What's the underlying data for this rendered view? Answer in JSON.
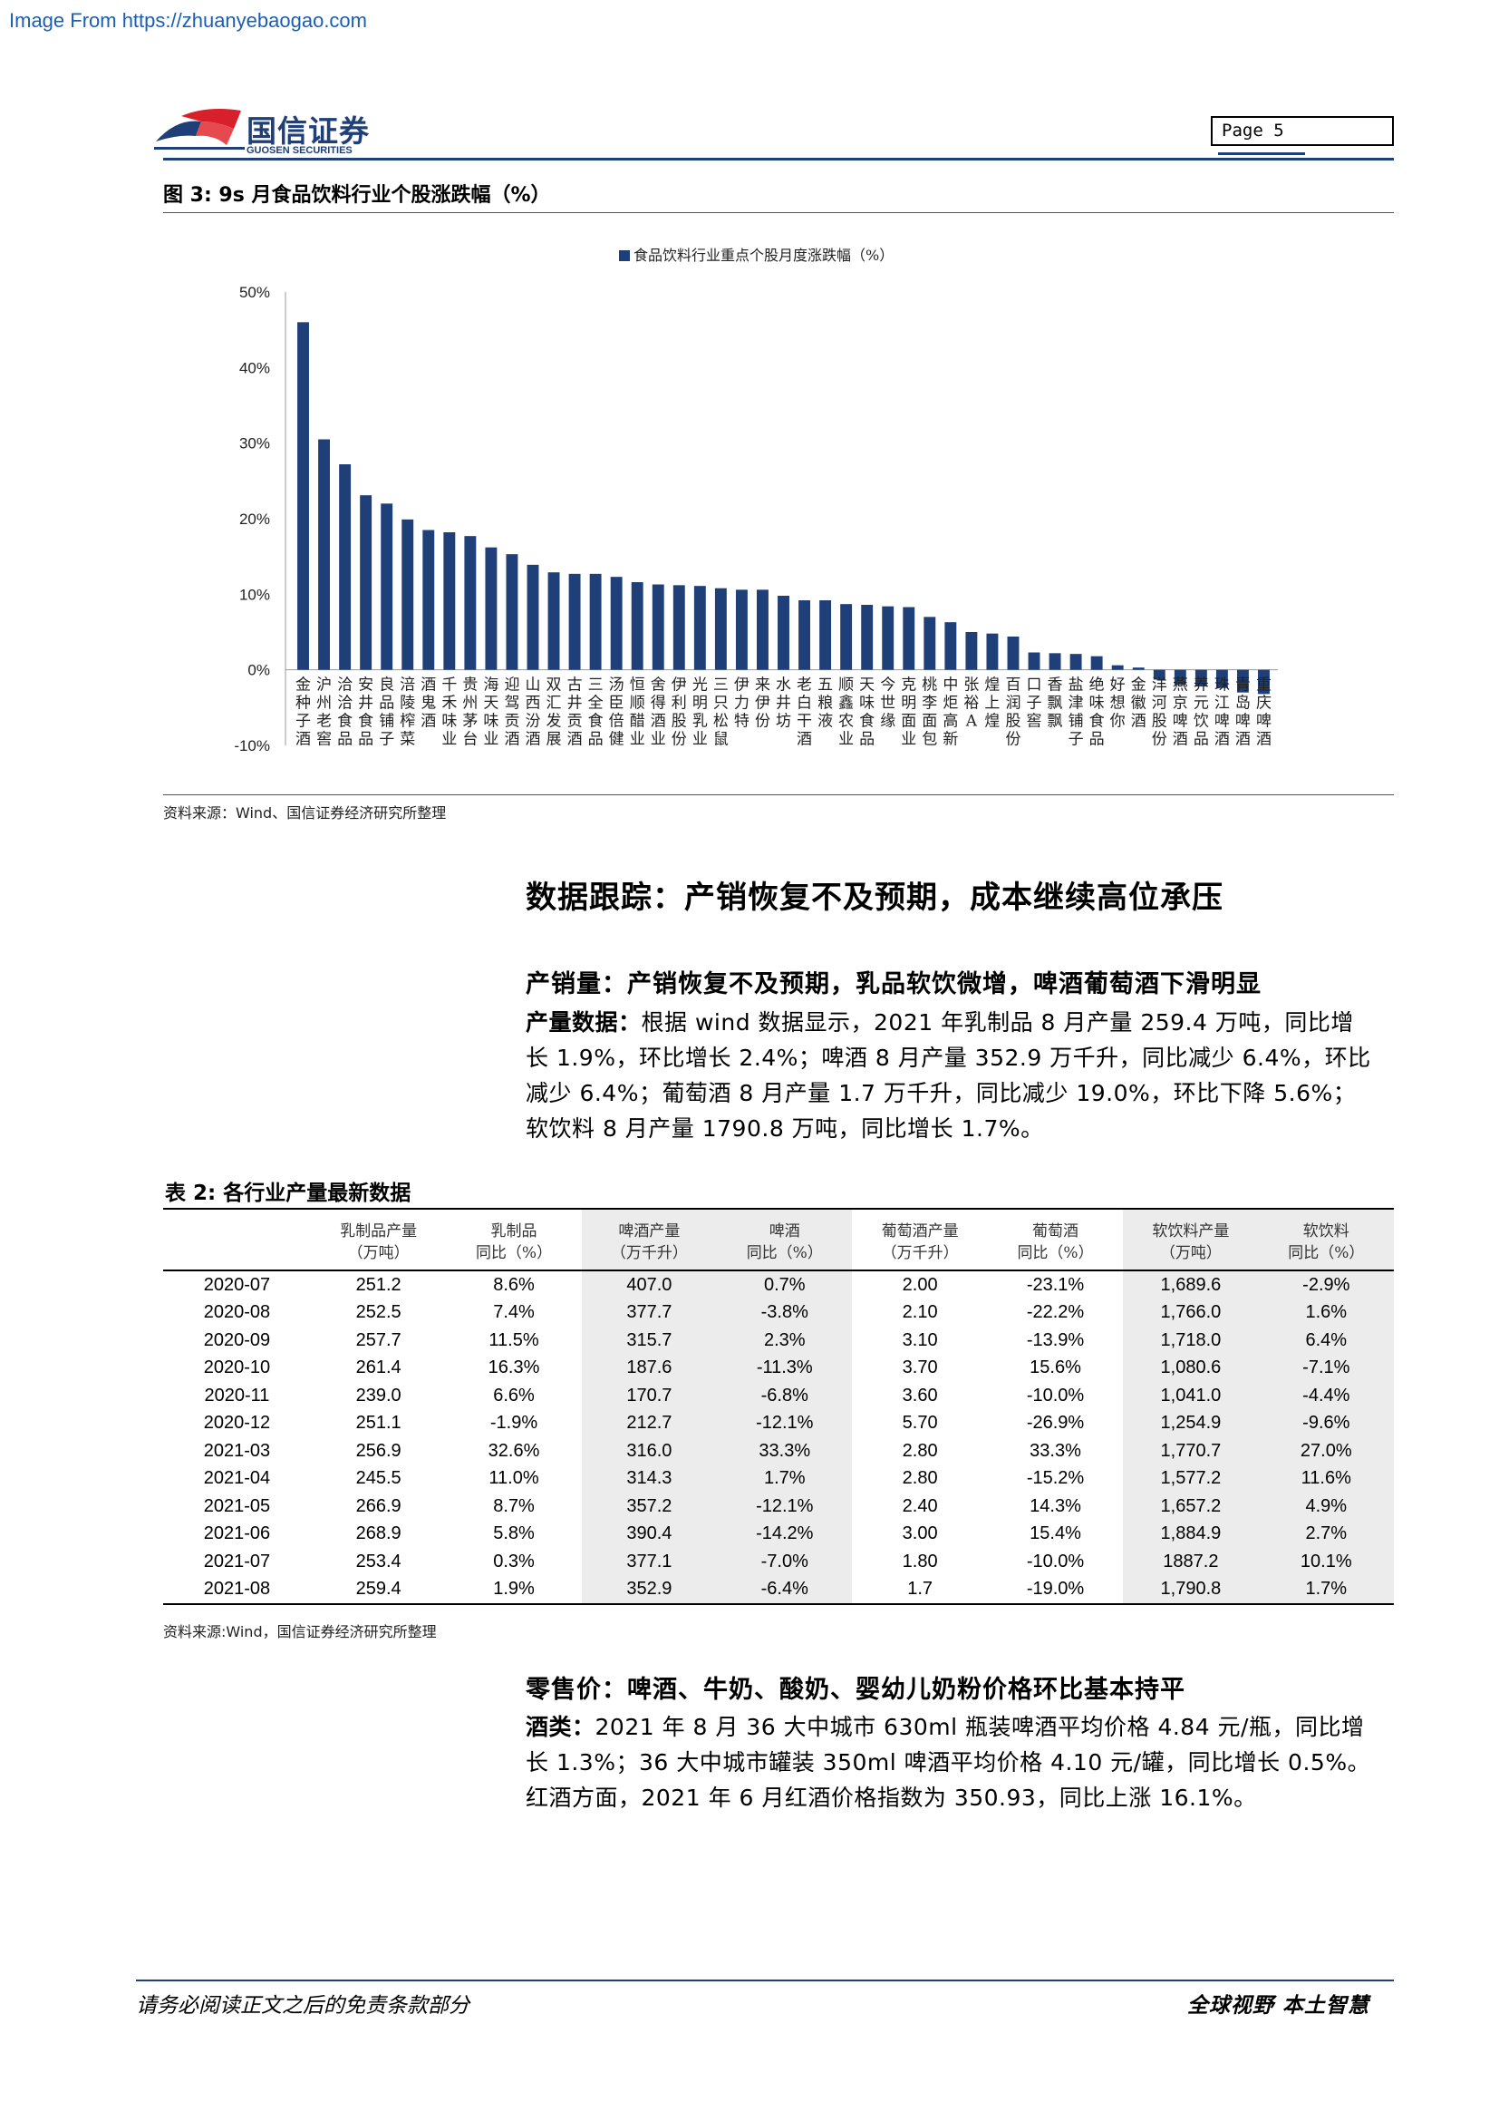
{
  "watermark": "Image From https://zhuanyebaogao.com",
  "header": {
    "logo_cn": "国信证券",
    "logo_en": "GUOSEN SECURITIES",
    "page_label": "Page  5"
  },
  "figure": {
    "title": "图 3:  9s 月食品饮料行业个股涨跌幅（%）",
    "source": "资料来源：Wind、国信证券经济研究所整理"
  },
  "chart_data": {
    "type": "bar",
    "legend": "食品饮料行业重点个股月度涨跌幅（%）",
    "ylim": [
      -10,
      50
    ],
    "yticks": [
      "50%",
      "40%",
      "30%",
      "20%",
      "10%",
      "0%",
      "-10%"
    ],
    "categories": [
      "金种子酒",
      "沪州老窖",
      "洽洽食品",
      "安井食品",
      "良品铺子",
      "涪陵榨菜",
      "酒鬼酒",
      "千禾味业",
      "贵州茅台",
      "海天味业",
      "迎驾贡酒",
      "山西汾酒",
      "双汇发展",
      "古井贡酒",
      "三全食品",
      "汤臣倍健",
      "恒顺醋业",
      "舍得酒业",
      "伊利股份",
      "光明乳业",
      "三只松鼠",
      "伊力特",
      "来伊份",
      "水井坊",
      "老白干酒",
      "五粮液",
      "顺鑫农业",
      "天味食品",
      "今世缘",
      "克明面业",
      "桃李面包",
      "中炬高新",
      "张裕A",
      "煌上煌",
      "百润股份",
      "口子窖",
      "香飘飘",
      "盐津铺子",
      "绝味食品",
      "好想你",
      "金徽酒",
      "洋河股份",
      "燕京啤酒",
      "养元饮品",
      "珠江啤酒",
      "青岛啤酒",
      "重庆啤酒"
    ],
    "values": [
      46,
      30.5,
      27.2,
      23.1,
      22.0,
      19.9,
      18.5,
      18.2,
      17.7,
      16.2,
      15.3,
      13.9,
      12.9,
      12.7,
      12.7,
      12.3,
      11.6,
      11.3,
      11.2,
      11.1,
      10.8,
      10.6,
      10.6,
      9.8,
      9.2,
      9.2,
      8.7,
      8.6,
      8.4,
      8.3,
      7.0,
      6.3,
      5.0,
      4.8,
      4.4,
      2.3,
      2.2,
      2.1,
      1.8,
      0.6,
      0.3,
      -1.3,
      -2.0,
      -2.2,
      -2.4,
      -3.0,
      -3.2
    ],
    "color": "#1f3f79"
  },
  "section": {
    "title": "数据跟踪：产销恢复不及预期，成本继续高位承压",
    "sub1": "产销量：产销恢复不及预期，乳品软饮微增，啤酒葡萄酒下滑明显",
    "para1_label": "产量数据：",
    "para1_lines": [
      "根据 wind 数据显示，2021 年乳制品 8 月产量 259.4 万吨，同比增",
      "长 1.9%，环比增长 2.4%；啤酒 8 月产量 352.9 万千升，同比减少 6.4%，环比",
      "减少 6.4%；葡萄酒 8 月产量 1.7 万千升，同比减少 19.0%，环比下降 5.6%；",
      "软饮料 8 月产量 1790.8 万吨，同比增长 1.7%。"
    ],
    "sub2": "零售价：啤酒、牛奶、酸奶、婴幼儿奶粉价格环比基本持平",
    "para2_label": "酒类：",
    "para2_lines": [
      "2021 年 8 月 36 大中城市 630ml 瓶装啤酒平均价格 4.84 元/瓶，同比增",
      "长 1.3%；36 大中城市罐装 350ml 啤酒平均价格 4.10 元/罐，同比增长 0.5%。",
      "红酒方面，2021 年 6 月红酒价格指数为 350.93，同比上涨 16.1%。"
    ]
  },
  "table": {
    "title": "表 2:   各行业产量最新数据",
    "headers": [
      [
        "",
        ""
      ],
      [
        "乳制品产量",
        "（万吨）"
      ],
      [
        "乳制品",
        "同比（%）"
      ],
      [
        "啤酒产量",
        "（万千升）"
      ],
      [
        "啤酒",
        "同比（%）"
      ],
      [
        "葡萄酒产量",
        "（万千升）"
      ],
      [
        "葡萄酒",
        "同比（%）"
      ],
      [
        "软饮料产量",
        "（万吨）"
      ],
      [
        "软饮料",
        "同比（%）"
      ]
    ],
    "rows": [
      [
        "2020-07",
        "251.2",
        "8.6%",
        "407.0",
        "0.7%",
        "2.00",
        "-23.1%",
        "1,689.6",
        "-2.9%"
      ],
      [
        "2020-08",
        "252.5",
        "7.4%",
        "377.7",
        "-3.8%",
        "2.10",
        "-22.2%",
        "1,766.0",
        "1.6%"
      ],
      [
        "2020-09",
        "257.7",
        "11.5%",
        "315.7",
        "2.3%",
        "3.10",
        "-13.9%",
        "1,718.0",
        "6.4%"
      ],
      [
        "2020-10",
        "261.4",
        "16.3%",
        "187.6",
        "-11.3%",
        "3.70",
        "15.6%",
        "1,080.6",
        "-7.1%"
      ],
      [
        "2020-11",
        "239.0",
        "6.6%",
        "170.7",
        "-6.8%",
        "3.60",
        "-10.0%",
        "1,041.0",
        "-4.4%"
      ],
      [
        "2020-12",
        "251.1",
        "-1.9%",
        "212.7",
        "-12.1%",
        "5.70",
        "-26.9%",
        "1,254.9",
        "-9.6%"
      ],
      [
        "2021-03",
        "256.9",
        "32.6%",
        "316.0",
        "33.3%",
        "2.80",
        "33.3%",
        "1,770.7",
        "27.0%"
      ],
      [
        "2021-04",
        "245.5",
        "11.0%",
        "314.3",
        "1.7%",
        "2.80",
        "-15.2%",
        "1,577.2",
        "11.6%"
      ],
      [
        "2021-05",
        "266.9",
        "8.7%",
        "357.2",
        "-12.1%",
        "2.40",
        "14.3%",
        "1,657.2",
        "4.9%"
      ],
      [
        "2021-06",
        "268.9",
        "5.8%",
        "390.4",
        "-14.2%",
        "3.00",
        "15.4%",
        "1,884.9",
        "2.7%"
      ],
      [
        "2021-07",
        "253.4",
        "0.3%",
        "377.1",
        "-7.0%",
        "1.80",
        "-10.0%",
        "1887.2",
        "10.1%"
      ],
      [
        "2021-08",
        "259.4",
        "1.9%",
        "352.9",
        "-6.4%",
        "1.7",
        "-19.0%",
        "1,790.8",
        "1.7%"
      ]
    ],
    "source": "资料来源:Wind，国信证券经济研究所整理"
  },
  "footer": {
    "left": "请务必阅读正文之后的免责条款部分",
    "right": "全球视野  本土智慧"
  }
}
